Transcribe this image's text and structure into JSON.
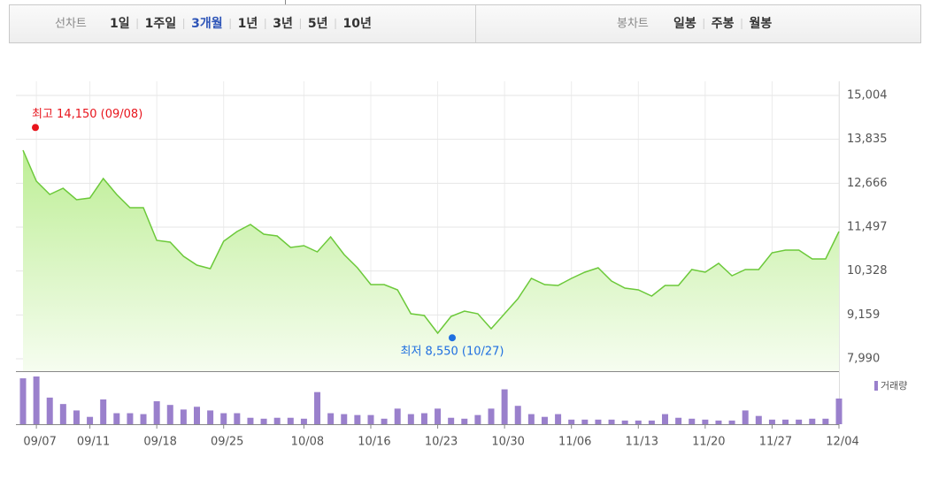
{
  "tabs": {
    "line_label": "선차트",
    "line_options": [
      "1일",
      "1주일",
      "3개월",
      "1년",
      "3년",
      "5년",
      "10년"
    ],
    "selected": 2,
    "candle_label": "봉차트",
    "candle_options": [
      "일봉",
      "주봉",
      "월봉"
    ]
  },
  "chart_data": [
    {
      "type": "area",
      "color": "#6cc93a",
      "values": [
        13544,
        12720,
        12368,
        12532,
        12226,
        12273,
        12791,
        12368,
        12015,
        12015,
        11144,
        11097,
        10720,
        10485,
        10391,
        11120,
        11379,
        11567,
        11308,
        11261,
        10956,
        11003,
        10838,
        11238,
        10767,
        10414,
        9967,
        9967,
        9826,
        9190,
        9143,
        8673,
        9120,
        9261,
        9190,
        8790,
        9190,
        9590,
        10132,
        9967,
        9943,
        10132,
        10296,
        10414,
        10061,
        9873,
        9826,
        9661,
        9943,
        9943,
        10367,
        10296,
        10532,
        10202,
        10367,
        10367,
        10814,
        10885,
        10885,
        10650,
        10650,
        11379
      ],
      "ylim": [
        7661,
        15380
      ],
      "yticks": [
        {
          "value": 15004,
          "label": "15,004"
        },
        {
          "value": 13835,
          "label": "13,835"
        },
        {
          "value": 12666,
          "label": "12,666"
        },
        {
          "value": 11497,
          "label": "11,497"
        },
        {
          "value": 10328,
          "label": "10,328"
        },
        {
          "value": 9159,
          "label": "9,159"
        },
        {
          "value": 7990,
          "label": "7,990"
        }
      ],
      "grid": true,
      "annotations": [
        {
          "text": "최고 14,150 (09/08)",
          "value": 14150,
          "color": "#e8141c"
        },
        {
          "text": "최저 8,550 (10/27)",
          "value": 8550,
          "color": "#1f6fe0"
        }
      ]
    },
    {
      "type": "bar",
      "categories": [
        null,
        "09/07",
        null,
        null,
        null,
        "09/11",
        null,
        null,
        null,
        null,
        "09/18",
        null,
        null,
        null,
        null,
        "09/25",
        null,
        null,
        null,
        null,
        null,
        "10/08",
        null,
        null,
        null,
        null,
        "10/16",
        null,
        null,
        null,
        null,
        "10/23",
        null,
        null,
        null,
        null,
        "10/30",
        null,
        null,
        null,
        null,
        "11/06",
        null,
        null,
        null,
        null,
        "11/13",
        null,
        null,
        null,
        null,
        "11/20",
        null,
        null,
        null,
        null,
        "11/27",
        null,
        null,
        null,
        null,
        "12/04"
      ],
      "series": [
        {
          "name": "거래량",
          "color": "#9a80cc",
          "values": [
            50,
            52,
            29,
            22,
            15,
            8,
            27,
            12,
            12,
            11,
            25,
            21,
            16,
            19,
            15,
            12,
            12,
            7,
            6,
            7,
            7,
            6,
            35,
            12,
            11,
            10,
            10,
            6,
            17,
            11,
            12,
            17,
            7,
            6,
            10,
            17,
            38,
            20,
            11,
            8,
            11,
            5,
            5,
            5,
            5,
            4,
            4,
            4,
            11,
            7,
            6,
            5,
            4,
            4,
            15,
            9,
            5,
            5,
            5,
            6,
            6,
            28
          ]
        }
      ]
    }
  ]
}
